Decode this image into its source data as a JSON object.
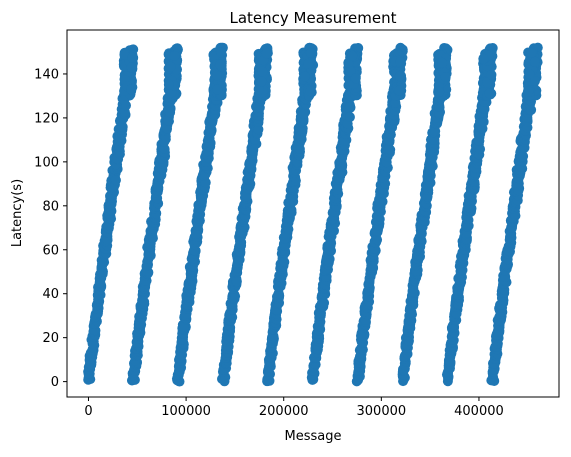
{
  "chart_data": {
    "type": "scatter",
    "title": "Latency Measurement",
    "xlabel": "Message",
    "ylabel": "Latency(s)",
    "xlim": [
      -22000,
      482000
    ],
    "ylim": [
      -7,
      160
    ],
    "xticks": [
      0,
      100000,
      200000,
      300000,
      400000
    ],
    "xtick_labels": [
      "0",
      "100000",
      "200000",
      "300000",
      "400000"
    ],
    "yticks": [
      0,
      20,
      40,
      60,
      80,
      100,
      120,
      140
    ],
    "ytick_labels": [
      "0",
      "20",
      "40",
      "60",
      "80",
      "100",
      "120",
      "140"
    ],
    "grid": false,
    "legend": "none",
    "marker_color": "#1f77b4",
    "series": [
      {
        "clusters": [
          {
            "x_start": 0,
            "x_end": 45000,
            "y_start": 0,
            "y_end": 152
          },
          {
            "x_start": 46000,
            "x_end": 91000,
            "y_start": 0,
            "y_end": 152
          },
          {
            "x_start": 92000,
            "x_end": 137000,
            "y_start": 0,
            "y_end": 152
          },
          {
            "x_start": 138000,
            "x_end": 183000,
            "y_start": 0,
            "y_end": 152
          },
          {
            "x_start": 184000,
            "x_end": 229000,
            "y_start": 0,
            "y_end": 152
          },
          {
            "x_start": 230000,
            "x_end": 275000,
            "y_start": 0,
            "y_end": 152
          },
          {
            "x_start": 276000,
            "x_end": 321000,
            "y_start": 0,
            "y_end": 152
          },
          {
            "x_start": 322000,
            "x_end": 367000,
            "y_start": 0,
            "y_end": 152
          },
          {
            "x_start": 368000,
            "x_end": 413000,
            "y_start": 0,
            "y_end": 152
          },
          {
            "x_start": 414000,
            "x_end": 459000,
            "y_start": 0,
            "y_end": 152
          }
        ]
      }
    ]
  }
}
